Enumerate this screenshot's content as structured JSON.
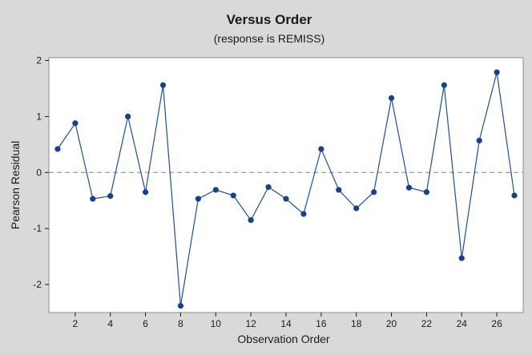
{
  "chart_data": {
    "type": "line",
    "title": "Versus Order",
    "subtitle": "(response is REMISS)",
    "xlabel": "Observation Order",
    "ylabel": "Pearson Residual",
    "xlim": [
      0.5,
      27.5
    ],
    "ylim": [
      -2.5,
      2.05
    ],
    "x_ticks": [
      2,
      4,
      6,
      8,
      10,
      12,
      14,
      16,
      18,
      20,
      22,
      24,
      26
    ],
    "y_ticks": [
      2,
      1,
      0,
      -1,
      -2
    ],
    "y_tick_labels": [
      "2",
      "1",
      "0",
      "-1",
      "-2"
    ],
    "reference_line": 0,
    "grid": false,
    "colors": {
      "series": "#1f4e96",
      "marker": "#1c3f8c",
      "reference_line": "#9a9a9a",
      "plot_background": "#ffffff",
      "page_background": "#d9d9d9"
    },
    "series": [
      {
        "x": [
          1,
          2,
          3,
          4,
          5,
          6,
          7,
          8,
          9,
          10,
          11,
          12,
          13,
          14,
          15,
          16,
          17,
          18,
          19,
          20,
          21,
          22,
          23,
          24,
          25,
          26,
          27
        ],
        "values": [
          0.42,
          0.88,
          -0.47,
          -0.42,
          1.0,
          -0.35,
          1.56,
          -2.38,
          -0.47,
          -0.31,
          -0.41,
          -0.85,
          -0.26,
          -0.47,
          -0.74,
          0.42,
          -0.31,
          -0.64,
          -0.35,
          1.33,
          -0.27,
          -0.35,
          1.56,
          -1.53,
          0.57,
          1.79,
          -0.41
        ]
      }
    ]
  }
}
